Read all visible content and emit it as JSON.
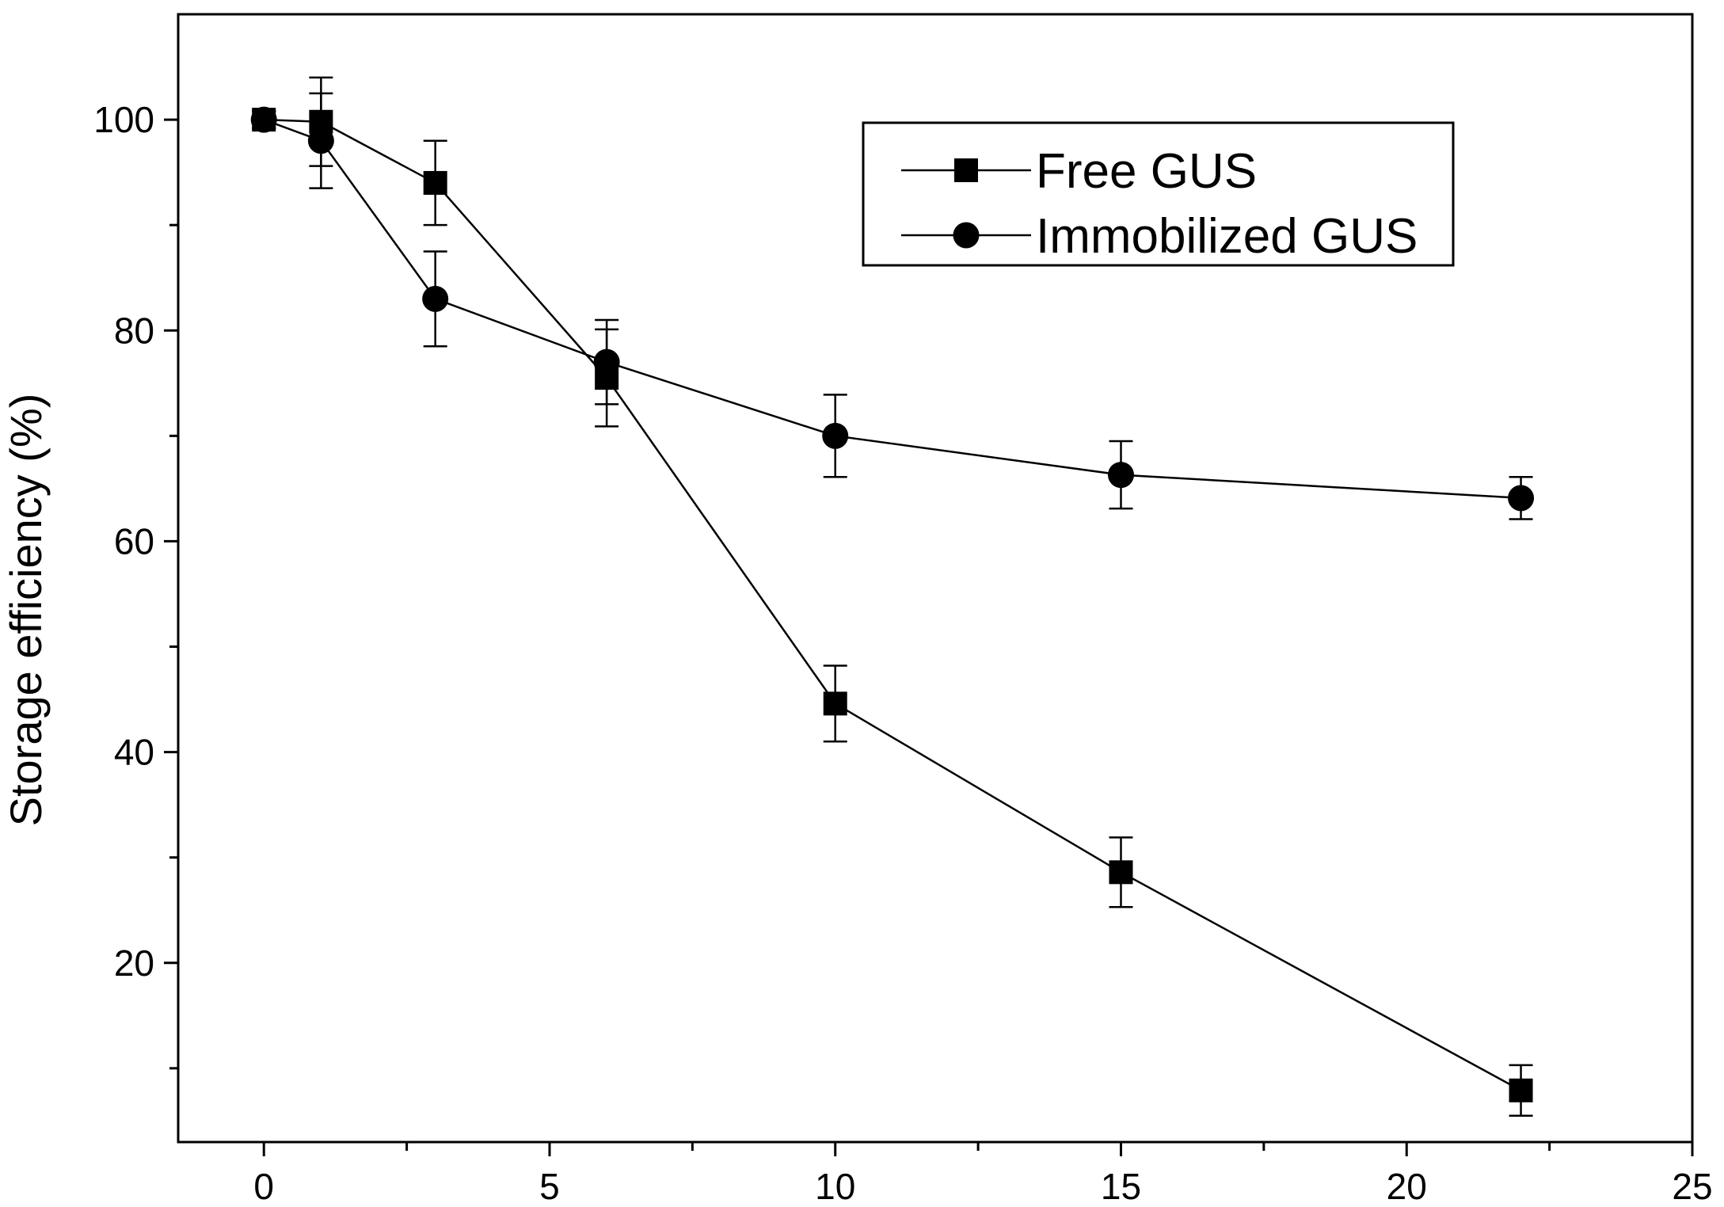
{
  "chart_data": {
    "type": "line",
    "title": "",
    "xlabel": "",
    "ylabel": "Storage efficiency (%)",
    "xlim": [
      -1.5,
      25
    ],
    "ylim": [
      3,
      110
    ],
    "x_ticks": [
      0,
      5,
      10,
      15,
      20,
      25
    ],
    "x_minor_ticks": [
      2.5,
      7.5,
      12.5,
      17.5,
      22.5
    ],
    "x_tick_labels": [
      "0",
      "5",
      "10",
      "15",
      "20",
      "25"
    ],
    "y_ticks": [
      20,
      40,
      60,
      80,
      100
    ],
    "y_minor_ticks": [
      10,
      30,
      50,
      70,
      90
    ],
    "y_tick_labels": [
      "20",
      "40",
      "60",
      "80",
      "100"
    ],
    "grid": false,
    "legend_position": "top-right",
    "colors": {
      "line": "#000000",
      "background": "#ffffff"
    },
    "series": [
      {
        "name": "Free GUS",
        "marker": "square",
        "x": [
          0,
          1,
          3,
          6,
          10,
          15,
          22
        ],
        "y": [
          100,
          99.8,
          94,
          75.5,
          44.6,
          28.6,
          7.9
        ],
        "error": [
          0.8,
          4.2,
          4.0,
          4.6,
          3.6,
          3.3,
          2.4
        ]
      },
      {
        "name": "Immobilized GUS",
        "marker": "circle",
        "x": [
          0,
          1,
          3,
          6,
          10,
          15,
          22
        ],
        "y": [
          100,
          98,
          83,
          77,
          70,
          66.3,
          64.1
        ],
        "error": [
          0.8,
          4.5,
          4.5,
          4.0,
          3.9,
          3.2,
          2.0
        ]
      }
    ]
  }
}
